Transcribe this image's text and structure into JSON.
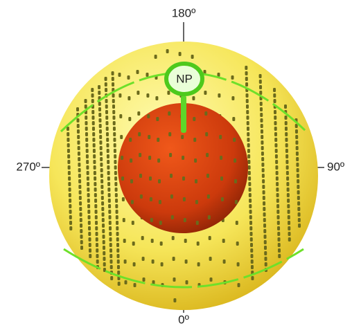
{
  "labels": {
    "top": "180º",
    "right": "90º",
    "bottom": "0º",
    "left": "270º",
    "pole": "NP"
  }
}
